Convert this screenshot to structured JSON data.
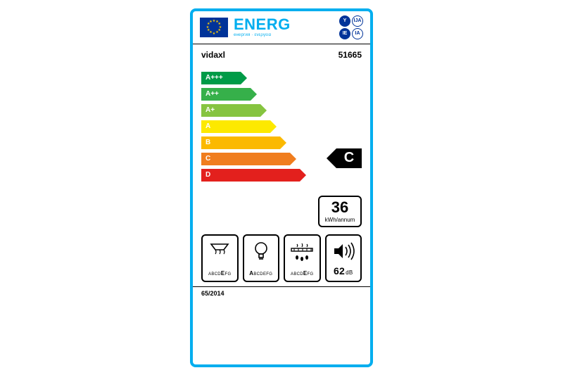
{
  "colors": {
    "border": "#00aeef",
    "eu_flag_bg": "#003399",
    "eu_star": "#ffcc00",
    "text": "#000000",
    "class_pointer_bg": "#000000"
  },
  "header": {
    "title": "ENERG",
    "subtitle": "енергия · ενεργεια",
    "roman": [
      "Y",
      "IJA",
      "IE",
      "IA"
    ]
  },
  "brand": "vidaxl",
  "model": "51665",
  "efficiency": {
    "scale": [
      {
        "label": "A+++",
        "color": "#009b47",
        "width": 56
      },
      {
        "label": "A++",
        "color": "#36b04a",
        "width": 70
      },
      {
        "label": "A+",
        "color": "#86c440",
        "width": 84
      },
      {
        "label": "A",
        "color": "#fde900",
        "width": 98
      },
      {
        "label": "B",
        "color": "#fbb900",
        "width": 112
      },
      {
        "label": "C",
        "color": "#f07d1e",
        "width": 126
      },
      {
        "label": "D",
        "color": "#e3201d",
        "width": 140
      }
    ],
    "rating": "C",
    "rating_index": 5
  },
  "consumption": {
    "value": "36",
    "unit": "kWh/annum"
  },
  "sub_ratings": {
    "fume": {
      "scale": "ABCDEFG",
      "highlight_index": 4
    },
    "lighting": {
      "scale": "ABCDEFG",
      "highlight_index": 0
    },
    "grease": {
      "scale": "ABCDEFG",
      "highlight_index": 4
    },
    "noise": {
      "value": "62",
      "unit": "dB"
    }
  },
  "regulation": "65/2014"
}
